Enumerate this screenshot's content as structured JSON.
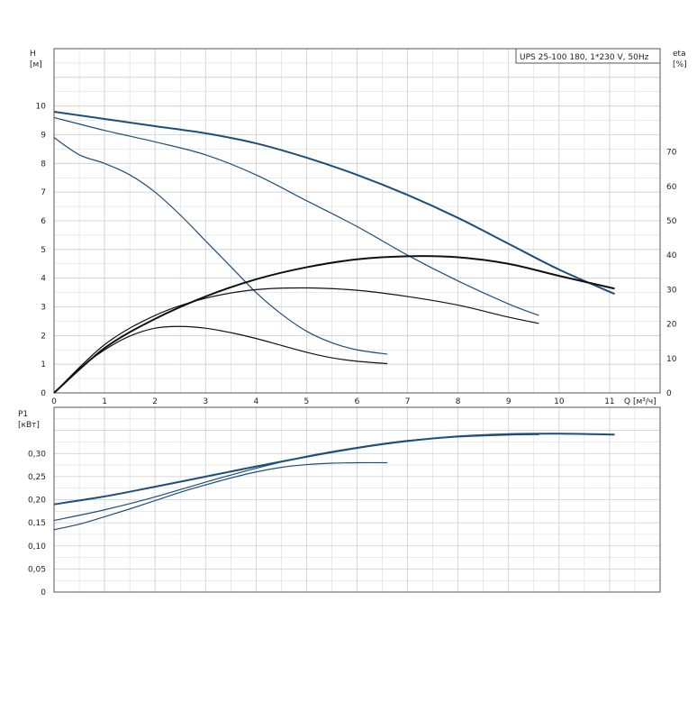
{
  "legend": {
    "text": "UPS 25-100  180, 1*230 V, 50Hz"
  },
  "colors": {
    "head_curve": "#1f4e79",
    "eta_curve": "#111111",
    "power_curve": "#1f4e79",
    "grid": "#cccccc",
    "frame": "#555555"
  },
  "chart_data": [
    {
      "type": "line",
      "panel": "top",
      "left_axis_label": {
        "name": "H",
        "unit": "[м]"
      },
      "right_axis_label": {
        "name": "eta",
        "unit": "[%]"
      },
      "x_axis_label": "Q [м³/ч]",
      "xlim": [
        0,
        12
      ],
      "ylim_left": [
        0,
        12
      ],
      "ylim_right": [
        0,
        100
      ],
      "x_ticks": [
        0,
        1,
        2,
        3,
        4,
        5,
        6,
        7,
        8,
        9,
        10,
        11
      ],
      "y_left_ticks": [
        0,
        1,
        2,
        3,
        4,
        5,
        6,
        7,
        8,
        9,
        10
      ],
      "y_right_ticks": [
        0,
        10,
        20,
        30,
        40,
        50,
        60,
        70
      ],
      "grid": true,
      "series_head": [
        {
          "speed": 3,
          "x": [
            0,
            1,
            2,
            3,
            4,
            5,
            6,
            7,
            8,
            9,
            10,
            11.1
          ],
          "y": [
            9.8,
            9.55,
            9.3,
            9.05,
            8.7,
            8.2,
            7.6,
            6.9,
            6.1,
            5.2,
            4.3,
            3.45
          ]
        },
        {
          "speed": 2,
          "x": [
            0,
            1,
            2,
            3,
            4,
            5,
            6,
            7,
            8,
            9,
            9.6
          ],
          "y": [
            9.6,
            9.15,
            8.75,
            8.3,
            7.6,
            6.7,
            5.8,
            4.8,
            3.9,
            3.1,
            2.7
          ]
        },
        {
          "speed": 1,
          "x": [
            0,
            0.5,
            1,
            1.5,
            2,
            2.5,
            3,
            3.5,
            4,
            4.5,
            5,
            5.5,
            6,
            6.6
          ],
          "y": [
            8.9,
            8.3,
            8.0,
            7.6,
            7.0,
            6.2,
            5.3,
            4.4,
            3.5,
            2.75,
            2.15,
            1.75,
            1.5,
            1.35
          ]
        }
      ],
      "series_eta": [
        {
          "speed": 3,
          "x": [
            0,
            1,
            2,
            3,
            4,
            5,
            6,
            7,
            8,
            9,
            10,
            11.1
          ],
          "y": [
            0,
            13,
            21.5,
            28,
            33,
            36.5,
            38.8,
            39.7,
            39.4,
            37.5,
            34,
            30.3
          ]
        },
        {
          "speed": 2,
          "x": [
            0,
            1,
            2,
            3,
            4,
            5,
            6,
            7,
            8,
            9,
            9.6
          ],
          "y": [
            0,
            14,
            22.5,
            27.5,
            30,
            30.5,
            29.8,
            28,
            25.5,
            22,
            20.2
          ]
        },
        {
          "speed": 1,
          "x": [
            0,
            0.5,
            1,
            1.5,
            2,
            2.5,
            3,
            3.5,
            4,
            4.5,
            5,
            5.5,
            6,
            6.6
          ],
          "y": [
            0,
            7,
            12.5,
            16.5,
            18.8,
            19.3,
            18.8,
            17.5,
            15.8,
            13.8,
            11.8,
            10.2,
            9.2,
            8.5
          ]
        }
      ]
    },
    {
      "type": "line",
      "panel": "bottom",
      "y_axis_label": {
        "name": "P1",
        "unit": "[кВт]"
      },
      "xlim": [
        0,
        12
      ],
      "ylim": [
        0,
        0.4
      ],
      "x_ticks": [
        0,
        1,
        2,
        3,
        4,
        5,
        6,
        7,
        8,
        9,
        10,
        11
      ],
      "y_ticks": [
        "0",
        "0,05",
        "0,10",
        "0,15",
        "0,20",
        "0,25",
        "0,30"
      ],
      "grid": true,
      "series": [
        {
          "speed": 3,
          "x": [
            0,
            1,
            2,
            3,
            4,
            5,
            6,
            7,
            8,
            9,
            10,
            11.1
          ],
          "y": [
            0.19,
            0.207,
            0.228,
            0.25,
            0.272,
            0.293,
            0.312,
            0.327,
            0.337,
            0.342,
            0.343,
            0.341
          ]
        },
        {
          "speed": 2,
          "x": [
            0,
            1,
            2,
            3,
            4,
            5,
            6,
            7,
            8,
            9,
            9.6
          ],
          "y": [
            0.155,
            0.178,
            0.206,
            0.238,
            0.268,
            0.294,
            0.313,
            0.328,
            0.336,
            0.34,
            0.341
          ]
        },
        {
          "speed": 1,
          "x": [
            0,
            0.5,
            1,
            1.5,
            2,
            2.5,
            3,
            3.5,
            4,
            4.5,
            5,
            5.5,
            6,
            6.6
          ],
          "y": [
            0.135,
            0.147,
            0.163,
            0.18,
            0.198,
            0.216,
            0.232,
            0.247,
            0.26,
            0.27,
            0.276,
            0.279,
            0.28,
            0.28
          ]
        }
      ]
    }
  ]
}
